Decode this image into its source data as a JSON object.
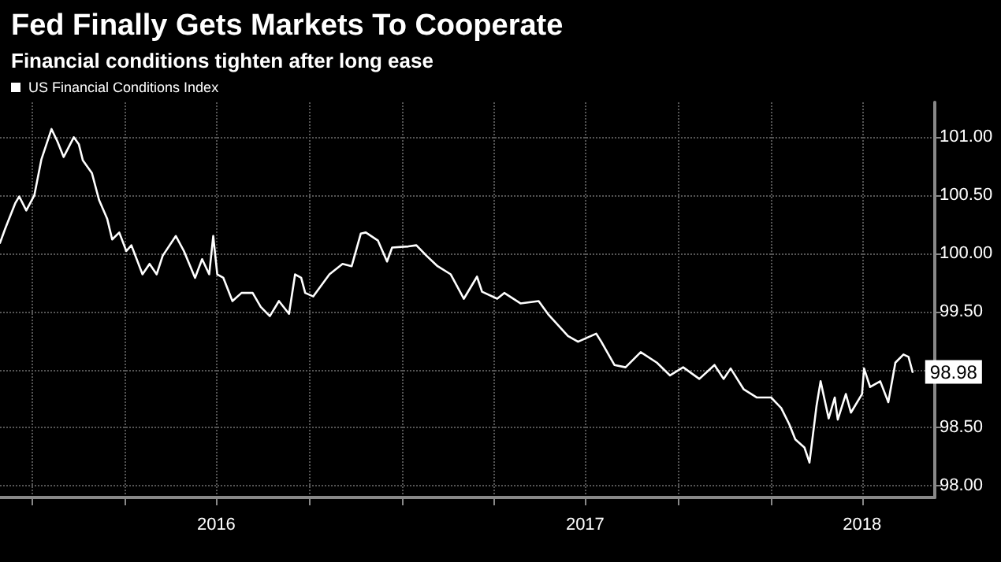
{
  "chart_data": {
    "type": "line",
    "title": "Fed Finally Gets Markets To Cooperate",
    "subtitle": "Financial conditions tighten after long ease",
    "x": [
      "2015-11-30",
      "2015-12-05",
      "2015-12-15",
      "2015-12-19",
      "2015-12-26",
      "2016-01-03",
      "2016-01-10",
      "2016-01-20",
      "2016-01-26",
      "2016-02-01",
      "2016-02-11",
      "2016-02-16",
      "2016-02-20",
      "2016-02-29",
      "2016-03-07",
      "2016-03-15",
      "2016-03-20",
      "2016-03-27",
      "2016-04-03",
      "2016-04-08",
      "2016-04-19",
      "2016-04-26",
      "2016-05-03",
      "2016-05-09",
      "2016-05-22",
      "2016-05-30",
      "2016-06-10",
      "2016-06-17",
      "2016-06-24",
      "2016-06-28",
      "2016-07-02",
      "2016-07-08",
      "2016-07-17",
      "2016-07-26",
      "2016-08-06",
      "2016-08-14",
      "2016-08-23",
      "2016-09-01",
      "2016-09-11",
      "2016-09-17",
      "2016-09-23",
      "2016-09-27",
      "2016-10-05",
      "2016-10-21",
      "2016-11-03",
      "2016-11-12",
      "2016-11-21",
      "2016-11-26",
      "2016-12-08",
      "2016-12-17",
      "2016-12-22",
      "2017-01-07",
      "2017-01-15",
      "2017-01-25",
      "2017-02-05",
      "2017-02-18",
      "2017-03-03",
      "2017-03-16",
      "2017-03-21",
      "2017-04-05",
      "2017-04-12",
      "2017-04-28",
      "2017-05-16",
      "2017-05-26",
      "2017-06-14",
      "2017-06-24",
      "2017-07-12",
      "2017-07-17",
      "2017-07-30",
      "2017-08-10",
      "2017-08-25",
      "2017-09-10",
      "2017-09-23",
      "2017-10-06",
      "2017-10-22",
      "2017-11-06",
      "2017-11-15",
      "2017-11-22",
      "2017-12-05",
      "2017-12-18",
      "2018-01-01",
      "2018-01-11",
      "2018-01-19",
      "2018-01-25",
      "2018-02-03",
      "2018-02-08",
      "2018-02-15",
      "2018-02-19",
      "2018-02-27",
      "2018-03-05",
      "2018-03-08",
      "2018-03-16",
      "2018-03-21",
      "2018-04-01",
      "2018-04-03",
      "2018-04-09",
      "2018-04-19",
      "2018-04-27",
      "2018-05-04",
      "2018-05-12",
      "2018-05-17",
      "2018-05-21"
    ],
    "series": [
      {
        "name": "US Financial Conditions Index",
        "color": "#ffffff",
        "values": [
          100.09,
          100.21,
          100.43,
          100.49,
          100.37,
          100.5,
          100.81,
          101.07,
          100.96,
          100.83,
          101.0,
          100.94,
          100.8,
          100.69,
          100.46,
          100.3,
          100.12,
          100.18,
          100.02,
          100.07,
          99.82,
          99.91,
          99.82,
          99.98,
          100.15,
          100.02,
          99.79,
          99.95,
          99.82,
          100.15,
          99.82,
          99.79,
          99.59,
          99.66,
          99.66,
          99.54,
          99.46,
          99.59,
          99.48,
          99.82,
          99.79,
          99.66,
          99.63,
          99.82,
          99.91,
          99.89,
          100.17,
          100.18,
          100.11,
          99.93,
          100.05,
          100.06,
          100.07,
          99.98,
          99.89,
          99.82,
          99.61,
          99.8,
          99.67,
          99.61,
          99.66,
          99.57,
          99.59,
          99.47,
          99.29,
          99.24,
          99.31,
          99.24,
          99.04,
          99.02,
          99.15,
          99.06,
          98.95,
          99.02,
          98.92,
          99.04,
          98.92,
          99.01,
          98.83,
          98.76,
          98.76,
          98.67,
          98.53,
          98.4,
          98.33,
          98.2,
          98.69,
          98.9,
          98.58,
          98.76,
          98.57,
          98.79,
          98.63,
          98.79,
          99.01,
          98.85,
          98.9,
          98.72,
          99.06,
          99.13,
          99.11,
          98.98
        ],
        "value_labels": [
          null,
          null,
          null,
          null,
          null,
          null,
          null,
          null,
          null,
          null,
          null,
          null,
          null,
          null,
          null,
          null,
          null,
          null,
          null,
          null,
          null,
          null,
          null,
          null,
          null,
          null,
          null,
          null,
          null,
          null,
          null,
          null,
          null,
          null,
          null,
          null,
          null,
          null,
          null,
          null,
          null,
          null,
          null,
          null,
          null,
          null,
          null,
          null,
          null,
          null,
          null,
          null,
          null,
          null,
          null,
          null,
          null,
          null,
          null,
          null,
          null,
          null,
          null,
          null,
          null,
          null,
          null,
          null,
          null,
          null,
          null,
          null,
          null,
          null,
          null,
          null,
          null,
          null,
          null,
          null,
          null,
          null,
          null,
          null,
          null,
          null,
          null,
          null,
          null,
          null,
          null,
          null,
          null,
          null,
          null,
          null,
          null,
          null,
          null,
          null,
          null,
          "98.98"
        ]
      }
    ],
    "xlim": [
      "2015-11-30",
      "2018-06-12"
    ],
    "xticks": [
      {
        "value": "2016-01-01",
        "label": null
      },
      {
        "value": "2016-04-01",
        "label": null
      },
      {
        "value": "2016-07-01",
        "label": "2016"
      },
      {
        "value": "2016-10-01",
        "label": null
      },
      {
        "value": "2017-01-01",
        "label": null
      },
      {
        "value": "2017-04-01",
        "label": null
      },
      {
        "value": "2017-07-01",
        "label": "2017"
      },
      {
        "value": "2017-10-01",
        "label": null
      },
      {
        "value": "2018-01-01",
        "label": null
      },
      {
        "value": "2018-04-01",
        "label": "2018"
      }
    ],
    "ylim": [
      97.9,
      101.3
    ],
    "yticks": [
      {
        "value": 98,
        "label": "98.00"
      },
      {
        "value": 98.5,
        "label": "98.50"
      },
      {
        "value": 99,
        "label": null
      },
      {
        "value": 99.5,
        "label": "99.50"
      },
      {
        "value": 100,
        "label": "100.00"
      },
      {
        "value": 100.5,
        "label": "100.50"
      },
      {
        "value": 101,
        "label": "101.00"
      }
    ],
    "grid": true,
    "legend": "top left",
    "marker": "none",
    "line_style": "solid"
  }
}
